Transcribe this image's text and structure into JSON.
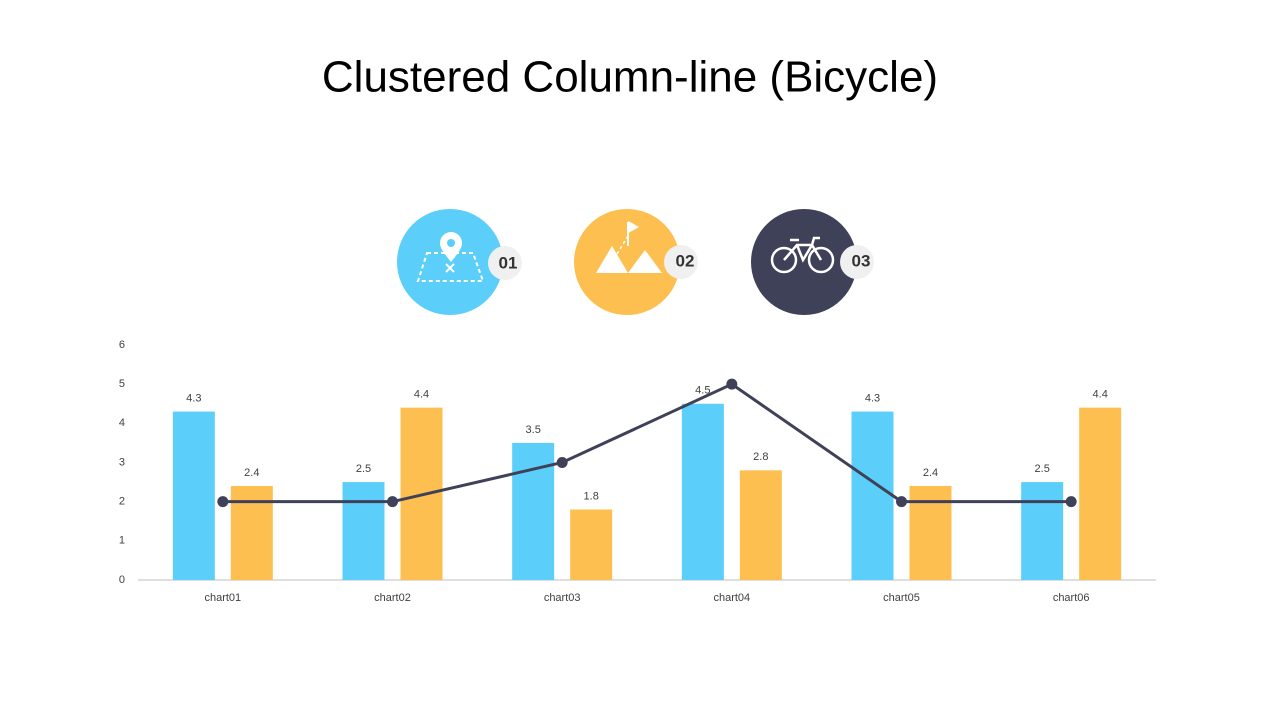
{
  "chart_data": {
    "type": "bar",
    "title": "Clustered Column-line (Bicycle)",
    "categories": [
      "chart01",
      "chart02",
      "chart03",
      "chart04",
      "chart05",
      "chart06"
    ],
    "series": [
      {
        "color": "#5bcffa",
        "values": [
          4.3,
          2.5,
          3.5,
          4.5,
          4.3,
          2.5
        ]
      },
      {
        "color": "#fdbf4f",
        "values": [
          2.4,
          4.4,
          1.8,
          2.8,
          2.4,
          4.4
        ]
      },
      {
        "type": "line",
        "color": "#3f4159",
        "values": [
          2,
          2,
          3,
          5,
          2,
          2
        ]
      }
    ],
    "ylim": [
      0,
      6
    ],
    "yticks": [
      0,
      1,
      2,
      3,
      4,
      5,
      6
    ],
    "grid": false
  },
  "badges": [
    "01",
    "02",
    "03"
  ]
}
